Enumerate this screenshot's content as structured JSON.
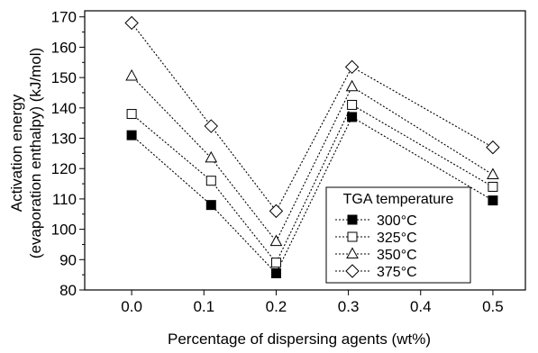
{
  "chart_data": {
    "type": "line",
    "title": "",
    "xlabel": "Percentage of dispersing agents (wt%)",
    "ylabel_lines": [
      "Activation energy",
      "(evaporation enthalpy) (kJ/mol)"
    ],
    "x_ticks": [
      "0.0",
      "0.1",
      "0.2",
      "0.3",
      "0.4",
      "0.5"
    ],
    "y_ticks": [
      "80",
      "90",
      "100",
      "110",
      "120",
      "130",
      "140",
      "150",
      "160",
      "170"
    ],
    "xlim": [
      -0.065,
      0.545
    ],
    "ylim": [
      80,
      172
    ],
    "grid": false,
    "line_style": "dotted",
    "legend": {
      "title": "TGA temperature",
      "position": "bottom-right-inside"
    },
    "x": [
      0.0,
      0.11,
      0.2,
      0.305,
      0.5
    ],
    "series": [
      {
        "name": "300°C",
        "marker": "filled-square",
        "values": [
          131,
          108,
          85.5,
          137,
          109.5
        ]
      },
      {
        "name": "325°C",
        "marker": "open-square",
        "values": [
          138,
          116,
          89,
          141,
          114
        ]
      },
      {
        "name": "350°C",
        "marker": "open-triangle",
        "values": [
          150.5,
          123.5,
          96,
          147,
          118
        ]
      },
      {
        "name": "375°C",
        "marker": "open-diamond",
        "values": [
          168,
          134,
          106,
          153.5,
          127
        ]
      }
    ]
  }
}
